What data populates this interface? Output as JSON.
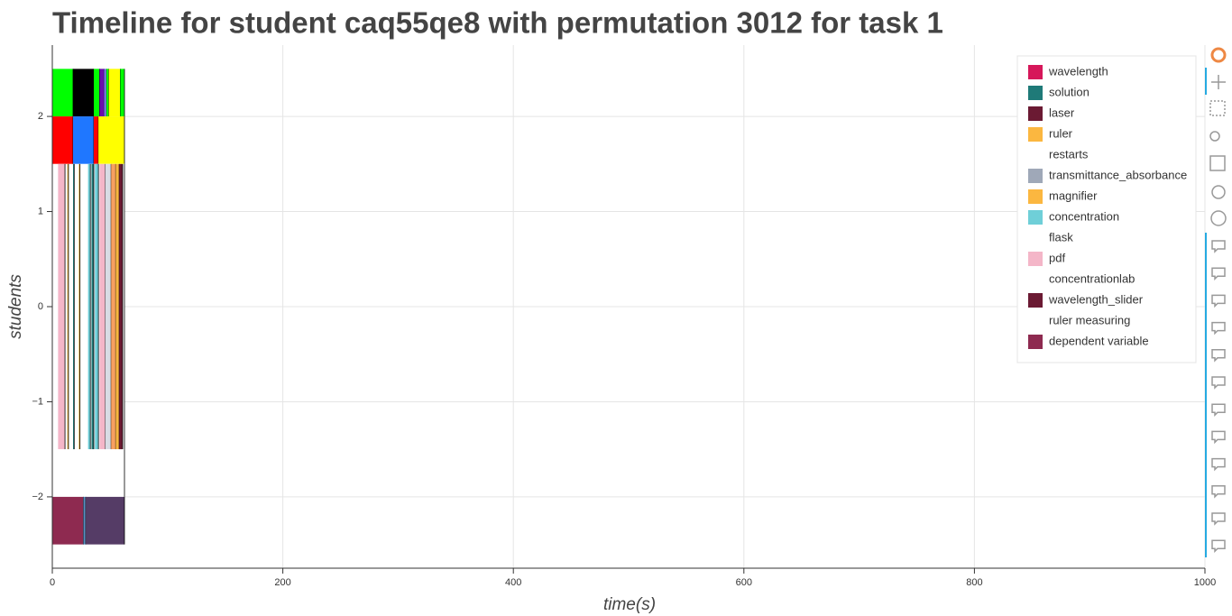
{
  "chart_data": {
    "type": "timeline",
    "title": "Timeline for student caq55qe8 with permutation 3012 for task 1",
    "xlabel": "time(s)",
    "ylabel": "students",
    "xlim": [
      0,
      1000
    ],
    "ylim": [
      -2.75,
      2.75
    ],
    "xticks": [
      0,
      200,
      400,
      600,
      800,
      1000
    ],
    "yticks": [
      -2,
      -1,
      0,
      1,
      2
    ],
    "grid": true,
    "legend_position": "top-right",
    "legend": [
      {
        "name": "wavelength",
        "color": "#d6175a"
      },
      {
        "name": "solution",
        "color": "#1f7a78"
      },
      {
        "name": "laser",
        "color": "#6b1a33"
      },
      {
        "name": "ruler",
        "color": "#fbb740"
      },
      {
        "name": "restarts",
        "color": "#ffffff"
      },
      {
        "name": "transmittance_absorbance",
        "color": "#9fa8b8"
      },
      {
        "name": "magnifier",
        "color": "#fbb740"
      },
      {
        "name": "concentration",
        "color": "#6fcfd8"
      },
      {
        "name": "flask",
        "color": "#ffffff"
      },
      {
        "name": "pdf",
        "color": "#f4b6c8"
      },
      {
        "name": "concentrationlab",
        "color": "#ffffff"
      },
      {
        "name": "wavelength_slider",
        "color": "#6b1a33"
      },
      {
        "name": "ruler measuring",
        "color": "#ffffff"
      },
      {
        "name": "dependent variable",
        "color": "#8e2a50"
      }
    ],
    "segments": [
      {
        "start": 0,
        "end": 18,
        "bottom": 2,
        "top": 2.5,
        "color": "#00ff00"
      },
      {
        "start": 18,
        "end": 36,
        "bottom": 2,
        "top": 2.5,
        "color": "#000000"
      },
      {
        "start": 36,
        "end": 41,
        "bottom": 2,
        "top": 2.5,
        "color": "#00ff00"
      },
      {
        "start": 41,
        "end": 45,
        "bottom": 2,
        "top": 2.5,
        "color": "#6a0dad"
      },
      {
        "start": 45,
        "end": 47,
        "bottom": 2,
        "top": 2.5,
        "color": "#8888ff"
      },
      {
        "start": 47,
        "end": 49,
        "bottom": 2,
        "top": 2.5,
        "color": "#00ff00"
      },
      {
        "start": 49,
        "end": 59,
        "bottom": 2,
        "top": 2.5,
        "color": "#ffff00"
      },
      {
        "start": 59,
        "end": 62.6,
        "bottom": 2,
        "top": 2.5,
        "color": "#00ff00"
      },
      {
        "start": 0,
        "end": 18,
        "bottom": 1.5,
        "top": 2,
        "color": "#ff0000"
      },
      {
        "start": 18,
        "end": 36,
        "bottom": 1.5,
        "top": 2,
        "color": "#1f77ff"
      },
      {
        "start": 36,
        "end": 40,
        "bottom": 1.5,
        "top": 2,
        "color": "#ff0000"
      },
      {
        "start": 40,
        "end": 62.6,
        "bottom": 1.5,
        "top": 2,
        "color": "#ffff00"
      },
      {
        "start": 0,
        "end": 62.6,
        "bottom": -1.5,
        "top": 1.5,
        "color": "#ffffff"
      },
      {
        "start": 5,
        "end": 11,
        "bottom": -1.5,
        "top": 1.5,
        "color": "#f4b6c8"
      },
      {
        "start": 13,
        "end": 14,
        "bottom": -1.5,
        "top": 1.5,
        "color": "#fbb740"
      },
      {
        "start": 18,
        "end": 19,
        "bottom": -1.5,
        "top": 1.5,
        "color": "#1f7a78"
      },
      {
        "start": 23,
        "end": 24,
        "bottom": -1.5,
        "top": 1.5,
        "color": "#fbb740"
      },
      {
        "start": 31,
        "end": 33,
        "bottom": -1.5,
        "top": 1.5,
        "color": "#6fcfd8"
      },
      {
        "start": 34,
        "end": 36,
        "bottom": -1.5,
        "top": 1.5,
        "color": "#1f7a78"
      },
      {
        "start": 37,
        "end": 40,
        "bottom": -1.5,
        "top": 1.5,
        "color": "#6fcfd8"
      },
      {
        "start": 41,
        "end": 46,
        "bottom": -1.5,
        "top": 1.5,
        "color": "#f4b6c8"
      },
      {
        "start": 46,
        "end": 51,
        "bottom": -1.5,
        "top": 1.5,
        "color": "#d8dce4"
      },
      {
        "start": 51,
        "end": 55,
        "bottom": -1.5,
        "top": 1.5,
        "color": "#f7a060"
      },
      {
        "start": 55,
        "end": 58,
        "bottom": -1.5,
        "top": 1.5,
        "color": "#fbb740"
      },
      {
        "start": 58,
        "end": 61,
        "bottom": -1.5,
        "top": 1.5,
        "color": "#6b1a33"
      },
      {
        "start": 0,
        "end": 62.6,
        "bottom": -2,
        "top": -1.5,
        "color": "#ffffff"
      },
      {
        "start": 0,
        "end": 27,
        "bottom": -2.5,
        "top": -2,
        "color": "#8e2a50"
      },
      {
        "start": 27,
        "end": 29,
        "bottom": -2.5,
        "top": -2,
        "color": "#5b8fc0"
      },
      {
        "start": 29,
        "end": 62.6,
        "bottom": -2.5,
        "top": -2,
        "color": "#553c66"
      }
    ]
  }
}
